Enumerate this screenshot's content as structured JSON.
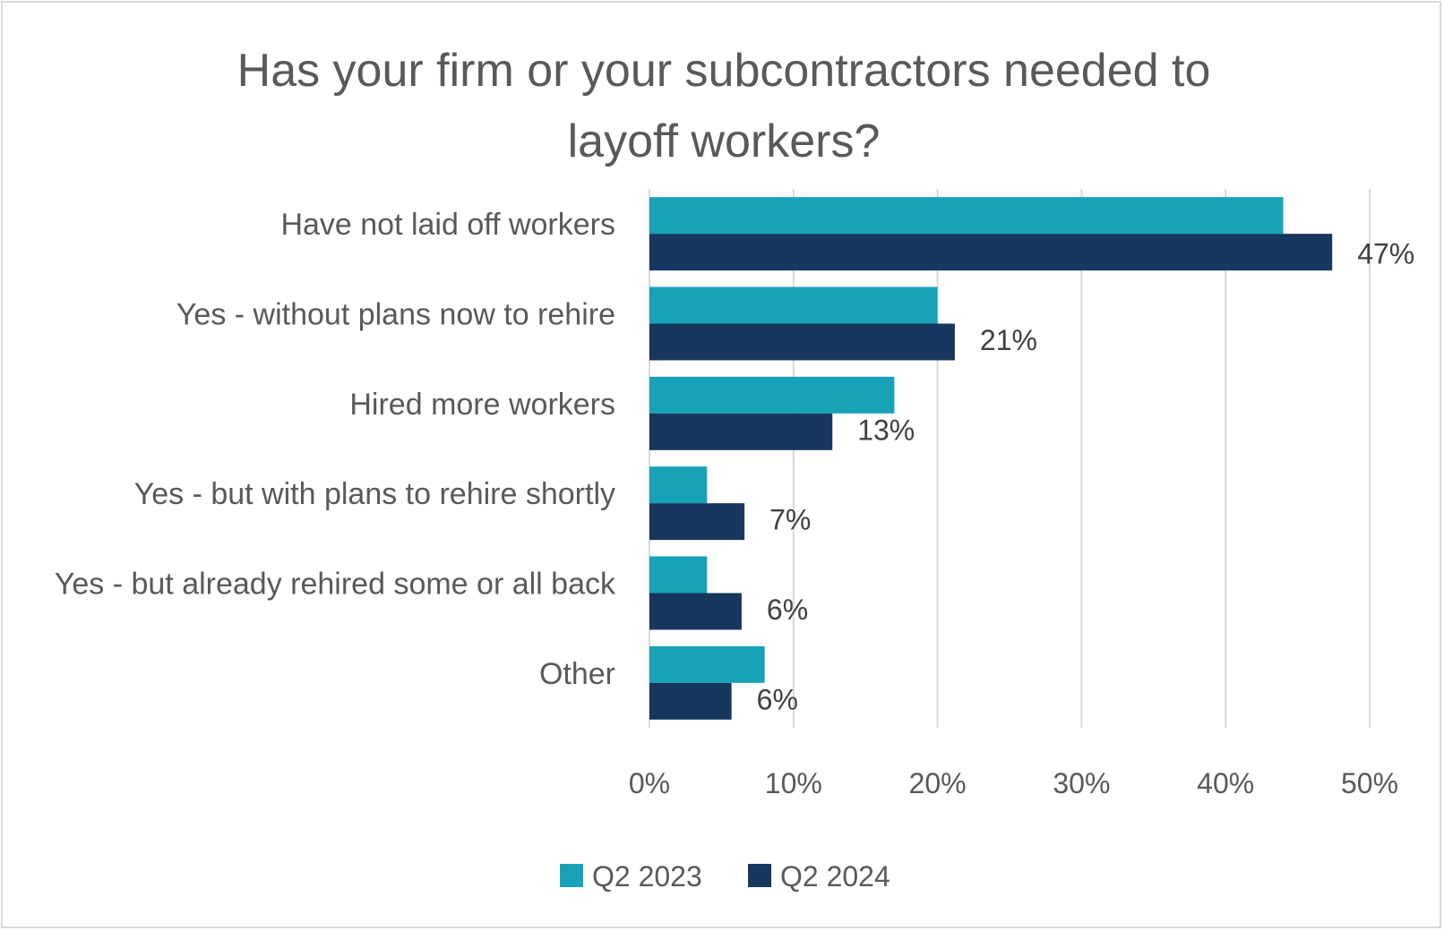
{
  "chart_data": {
    "type": "bar",
    "orientation": "horizontal",
    "title": "Has your firm or your subcontractors needed to layoff workers?",
    "title_lines": [
      "Has your firm or your subcontractors needed to",
      "layoff workers?"
    ],
    "categories": [
      "Have not laid off workers",
      "Yes - without plans now to rehire",
      "Hired more workers",
      "Yes - but with plans to rehire shortly",
      "Yes - but already rehired some or all back",
      "Other"
    ],
    "series": [
      {
        "name": "Q2 2023",
        "color": "#17a2b8",
        "values": [
          44,
          20,
          17,
          4,
          4,
          8
        ]
      },
      {
        "name": "Q2 2024",
        "color": "#17375e",
        "values": [
          47.4,
          21.2,
          12.7,
          6.6,
          6.4,
          5.7
        ],
        "data_labels": [
          "47%",
          "21%",
          "13%",
          "7%",
          "6%",
          "6%"
        ]
      }
    ],
    "xlim": [
      0,
      50
    ],
    "xticks": [
      0,
      10,
      20,
      30,
      40,
      50
    ],
    "xtick_labels": [
      "0%",
      "10%",
      "20%",
      "30%",
      "40%",
      "50%"
    ],
    "grid": true,
    "legend_position": "bottom"
  }
}
